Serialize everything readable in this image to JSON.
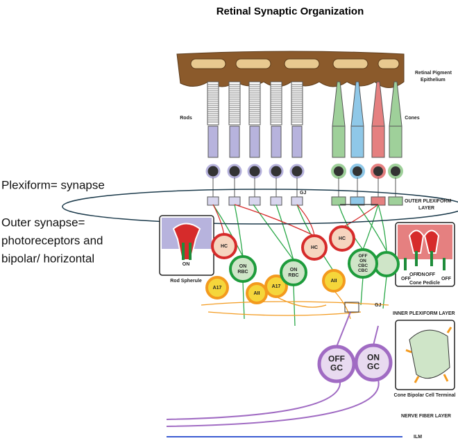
{
  "title": "Retinal Synaptic Organization",
  "labels": {
    "rpe": [
      "Retinal Pigment",
      "Epithelium"
    ],
    "rods": "Rods",
    "cones": "Cones",
    "gj_outer": "GJ",
    "opl": [
      "OUTER PLEXIFORM",
      "LAYER"
    ],
    "ipl": "INNER PLEXIFORM LAYER",
    "gj_inner": "GJ",
    "nfl": "NERVE FIBER LAYER",
    "ilm": "ILM"
  },
  "annotations": [
    "Plexiform= synapse",
    "Outer synapse=",
    "photoreceptors and",
    "bipolar/ horizontal"
  ],
  "cells": [
    {
      "label": [
        "HC"
      ]
    },
    {
      "label": [
        "ON",
        "RBC"
      ]
    },
    {
      "label": [
        "A17"
      ]
    },
    {
      "label": [
        "AII"
      ]
    },
    {
      "label": [
        "A17"
      ]
    },
    {
      "label": [
        "ON",
        "RBC"
      ]
    },
    {
      "label": [
        "HC"
      ]
    },
    {
      "label": [
        "HC"
      ]
    },
    {
      "label": [
        "AII"
      ]
    },
    {
      "label": [
        "OFF",
        "ON",
        "CBC",
        "CBC"
      ]
    },
    {
      "label": [
        "OFF",
        "GC"
      ]
    },
    {
      "label": [
        "ON",
        "GC"
      ]
    }
  ],
  "insets": {
    "rod_spherule": {
      "caption": "Rod Spherule",
      "label": "ON"
    },
    "cone_pedicle": {
      "caption": "Cone Pedicle",
      "labels": [
        "OFF",
        "ON",
        "OFF",
        "OFF",
        "OFF"
      ]
    },
    "cone_bipolar": {
      "caption": "Cone Bipolar Cell Terminal"
    }
  }
}
